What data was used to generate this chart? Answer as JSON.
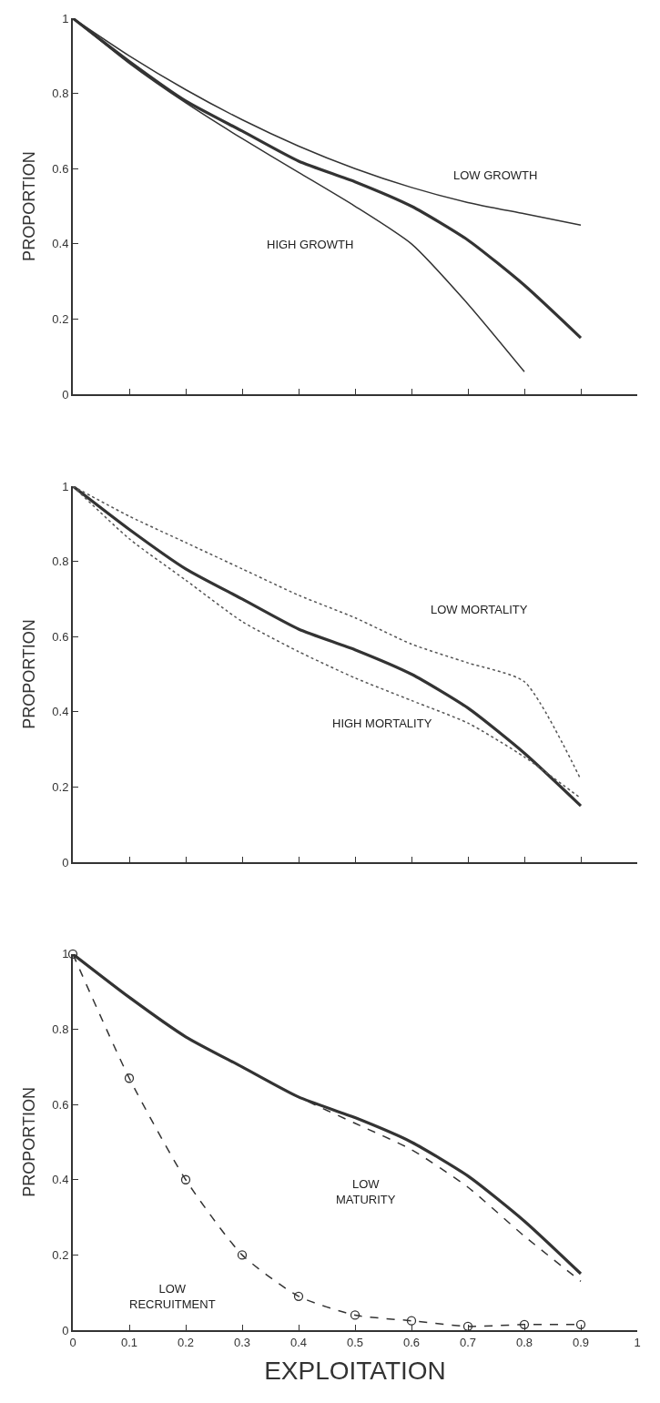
{
  "chart_data": [
    {
      "type": "line",
      "ylabel": "PROPORTION",
      "x": [
        0,
        0.1,
        0.2,
        0.3,
        0.4,
        0.5,
        0.6,
        0.7,
        0.8,
        0.9
      ],
      "xlim": [
        0,
        1
      ],
      "xticks": [
        0,
        0.1,
        0.2,
        0.3,
        0.4,
        0.5,
        0.6,
        0.7,
        0.8,
        0.9,
        1
      ],
      "ylim": [
        0,
        1
      ],
      "yticks": [
        0,
        0.2,
        0.4,
        0.6,
        0.8,
        1
      ],
      "tick_labels": "y",
      "grid": false,
      "legend": false,
      "series": [
        {
          "color": "#333333",
          "line_style": "solid",
          "values": [
            1,
            0.885,
            0.78,
            0.7,
            0.62,
            0.565,
            0.5,
            0.41,
            0.29,
            0.15
          ]
        },
        {
          "name": "LOW GROWTH",
          "color": "#333333",
          "line_style": "solid",
          "values": [
            1,
            0.9,
            0.81,
            0.73,
            0.66,
            0.6,
            0.55,
            0.51,
            0.48,
            0.45
          ]
        },
        {
          "name": "HIGH GROWTH",
          "color": "#333333",
          "line_style": "solid",
          "values": [
            1,
            0.88,
            0.775,
            0.68,
            0.59,
            0.5,
            0.4,
            0.24,
            0.06,
            null
          ]
        }
      ]
    },
    {
      "type": "line",
      "ylabel": "PROPORTION",
      "x": [
        0,
        0.1,
        0.2,
        0.3,
        0.4,
        0.5,
        0.6,
        0.7,
        0.8,
        0.9
      ],
      "xlim": [
        0,
        1
      ],
      "xticks": [
        0,
        0.1,
        0.2,
        0.3,
        0.4,
        0.5,
        0.6,
        0.7,
        0.8,
        0.9,
        1
      ],
      "ylim": [
        0,
        1
      ],
      "yticks": [
        0,
        0.2,
        0.4,
        0.6,
        0.8,
        1
      ],
      "tick_labels": "y",
      "grid": false,
      "legend": false,
      "series": [
        {
          "color": "#333333",
          "line_style": "solid",
          "values": [
            1,
            0.885,
            0.78,
            0.7,
            0.62,
            0.565,
            0.5,
            0.41,
            0.29,
            0.15
          ]
        },
        {
          "name": "LOW MORTALITY",
          "color": "#555555",
          "line_style": "dotted",
          "values": [
            1,
            0.92,
            0.85,
            0.78,
            0.71,
            0.65,
            0.58,
            0.53,
            0.48,
            0.22
          ]
        },
        {
          "name": "HIGH MORTALITY",
          "color": "#555555",
          "line_style": "dotted",
          "values": [
            1,
            0.86,
            0.75,
            0.64,
            0.56,
            0.49,
            0.43,
            0.37,
            0.28,
            0.17
          ]
        }
      ]
    },
    {
      "type": "line",
      "xlabel": "EXPLOITATION",
      "ylabel": "PROPORTION",
      "x": [
        0,
        0.1,
        0.2,
        0.3,
        0.4,
        0.5,
        0.6,
        0.7,
        0.8,
        0.9
      ],
      "xlim": [
        0,
        1
      ],
      "xticks": [
        0,
        0.1,
        0.2,
        0.3,
        0.4,
        0.5,
        0.6,
        0.7,
        0.8,
        0.9,
        1
      ],
      "ylim": [
        0,
        1
      ],
      "yticks": [
        0,
        0.2,
        0.4,
        0.6,
        0.8,
        1
      ],
      "grid": false,
      "legend": false,
      "series": [
        {
          "color": "#333333",
          "line_style": "solid",
          "values": [
            1,
            0.885,
            0.78,
            0.7,
            0.62,
            0.565,
            0.5,
            0.41,
            0.29,
            0.15
          ]
        },
        {
          "name": "LOW\nMATURITY",
          "color": "#333333",
          "line_style": "dashed",
          "values": [
            1,
            0.885,
            0.78,
            0.7,
            0.62,
            0.55,
            0.48,
            0.38,
            0.25,
            0.13
          ]
        },
        {
          "name": "LOW\nRECRUITMENT",
          "color": "#333333",
          "line_style": "dashed",
          "marker": "circle",
          "values": [
            1,
            0.67,
            0.4,
            0.2,
            0.09,
            0.04,
            0.025,
            0.01,
            0.015,
            0.015
          ]
        }
      ]
    }
  ]
}
